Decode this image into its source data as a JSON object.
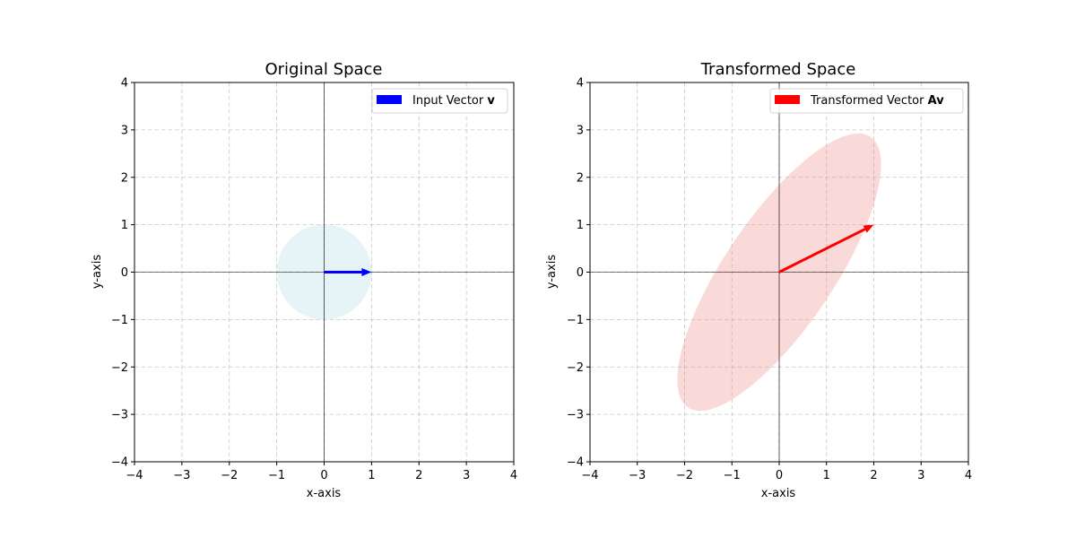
{
  "chart_data": [
    {
      "type": "line",
      "title": "Original Space",
      "xlabel": "x-axis",
      "ylabel": "y-axis",
      "xlim": [
        -4,
        4
      ],
      "ylim": [
        -4,
        4
      ],
      "xticks": [
        "−4",
        "−3",
        "−2",
        "−1",
        "0",
        "1",
        "2",
        "3",
        "4"
      ],
      "yticks": [
        "−4",
        "−3",
        "−2",
        "−1",
        "0",
        "1",
        "2",
        "3",
        "4"
      ],
      "tick_values": [
        -4,
        -3,
        -2,
        -1,
        0,
        1,
        2,
        3,
        4
      ],
      "grid": true,
      "legend_position": "upper right",
      "legend": {
        "text": "Input Vector ",
        "bold": "v",
        "color": "#0000ff"
      },
      "vector": {
        "from": [
          0,
          0
        ],
        "to": [
          1,
          0
        ],
        "color": "#0000ff"
      },
      "shape": {
        "kind": "circle",
        "center": [
          0,
          0
        ],
        "radius": 1,
        "color": "#add8e6",
        "alpha": 0.3
      }
    },
    {
      "type": "line",
      "title": "Transformed Space",
      "xlabel": "x-axis",
      "ylabel": "y-axis",
      "xlim": [
        -4,
        4
      ],
      "ylim": [
        -4,
        4
      ],
      "xticks": [
        "−4",
        "−3",
        "−2",
        "−1",
        "0",
        "1",
        "2",
        "3",
        "4"
      ],
      "yticks": [
        "−4",
        "−3",
        "−2",
        "−1",
        "0",
        "1",
        "2",
        "3",
        "4"
      ],
      "tick_values": [
        -4,
        -3,
        -2,
        -1,
        0,
        1,
        2,
        3,
        4
      ],
      "grid": true,
      "legend_position": "upper right",
      "legend": {
        "text": "Transformed Vector ",
        "bold": "Av",
        "color": "#ff0000"
      },
      "vector": {
        "from": [
          0,
          0
        ],
        "to": [
          2,
          1
        ],
        "color": "#ff0000"
      },
      "shape": {
        "kind": "ellipse",
        "center": [
          0,
          0
        ],
        "semi_axes": [
          3.45,
          1.15
        ],
        "angle_deg": 56,
        "color": "#f08080",
        "alpha": 0.3
      }
    }
  ]
}
